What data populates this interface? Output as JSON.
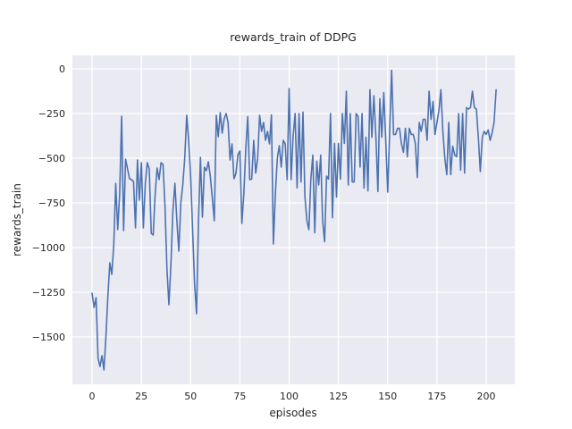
{
  "chart_data": {
    "type": "line",
    "title": "rewards_train of DDPG",
    "xlabel": "episodes",
    "ylabel": "rewards_train",
    "legend_position": "none",
    "grid": true,
    "style": "seaborn-darkgrid",
    "line_color": "#4c72b0",
    "axes_background": "#eaeaf2",
    "grid_color": "#ffffff",
    "text_color": "#262626",
    "figure_background": "#ffffff",
    "xlim": [
      -10,
      214.5
    ],
    "ylim": [
      -1765,
      75
    ],
    "xticks": [
      0,
      25,
      50,
      75,
      100,
      125,
      150,
      175,
      200
    ],
    "yticks": [
      0,
      -250,
      -500,
      -750,
      -1000,
      -1250,
      -1500
    ],
    "x_start": 0,
    "x_step": 1,
    "values": [
      -1255,
      -1335,
      -1280,
      -1620,
      -1665,
      -1605,
      -1685,
      -1500,
      -1270,
      -1085,
      -1150,
      -985,
      -640,
      -900,
      -700,
      -265,
      -905,
      -505,
      -560,
      -615,
      -620,
      -630,
      -890,
      -510,
      -735,
      -525,
      -890,
      -640,
      -525,
      -560,
      -920,
      -930,
      -700,
      -555,
      -620,
      -525,
      -535,
      -770,
      -1120,
      -1320,
      -1100,
      -800,
      -640,
      -850,
      -1020,
      -750,
      -650,
      -500,
      -260,
      -400,
      -600,
      -900,
      -1200,
      -1370,
      -850,
      -495,
      -830,
      -550,
      -570,
      -520,
      -600,
      -720,
      -850,
      -260,
      -380,
      -245,
      -360,
      -280,
      -250,
      -300,
      -510,
      -420,
      -615,
      -585,
      -480,
      -460,
      -865,
      -700,
      -450,
      -267,
      -620,
      -617,
      -400,
      -583,
      -500,
      -260,
      -350,
      -300,
      -400,
      -350,
      -420,
      -258,
      -980,
      -700,
      -500,
      -430,
      -550,
      -400,
      -420,
      -620,
      -110,
      -620,
      -383,
      -250,
      -666,
      -250,
      -633,
      -242,
      -717,
      -850,
      -900,
      -617,
      -483,
      -917,
      -517,
      -650,
      -483,
      -850,
      -967,
      -600,
      -617,
      -250,
      -833,
      -417,
      -717,
      -417,
      -617,
      -250,
      -417,
      -125,
      -650,
      -250,
      -633,
      -633,
      -250,
      -267,
      -550,
      -250,
      -667,
      -383,
      -683,
      -117,
      -383,
      -150,
      -383,
      -686,
      -167,
      -383,
      -133,
      -400,
      -690,
      -350,
      -8,
      -368,
      -367,
      -333,
      -333,
      -420,
      -467,
      -333,
      -492,
      -333,
      -367,
      -367,
      -417,
      -608,
      -300,
      -350,
      -283,
      -283,
      -400,
      -125,
      -283,
      -183,
      -367,
      -300,
      -233,
      -117,
      -350,
      -500,
      -592,
      -300,
      -592,
      -433,
      -483,
      -492,
      -250,
      -567,
      -250,
      -583,
      -217,
      -225,
      -217,
      -125,
      -217,
      -225,
      -383,
      -575,
      -383,
      -350,
      -367,
      -342,
      -400,
      -358,
      -300,
      -117
    ]
  }
}
